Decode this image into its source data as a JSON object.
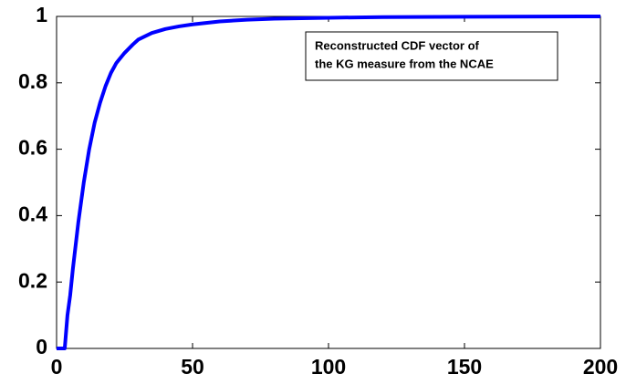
{
  "chart_data": {
    "type": "line",
    "annotation": [
      "Reconstructed CDF vector of",
      "the KG measure from the NCAE"
    ],
    "x": [
      0,
      3,
      3.5,
      4,
      5,
      6,
      8,
      10,
      12,
      14,
      16,
      18,
      20,
      22,
      25,
      28,
      30,
      35,
      40,
      45,
      50,
      60,
      70,
      80,
      100,
      120,
      150,
      200
    ],
    "series": [
      {
        "name": null,
        "color": "#0000ff",
        "values": [
          0,
          0,
          0.05,
          0.1,
          0.16,
          0.24,
          0.38,
          0.5,
          0.6,
          0.68,
          0.74,
          0.79,
          0.83,
          0.86,
          0.89,
          0.915,
          0.93,
          0.95,
          0.962,
          0.97,
          0.976,
          0.985,
          0.99,
          0.993,
          0.996,
          0.998,
          0.999,
          1
        ]
      }
    ],
    "xlim": [
      0,
      200
    ],
    "xticks": [
      0,
      50,
      100,
      150,
      200
    ],
    "ylim": [
      0,
      1
    ],
    "yticks": [
      0,
      0.2,
      0.4,
      0.6,
      0.8,
      1
    ],
    "grid": false
  }
}
